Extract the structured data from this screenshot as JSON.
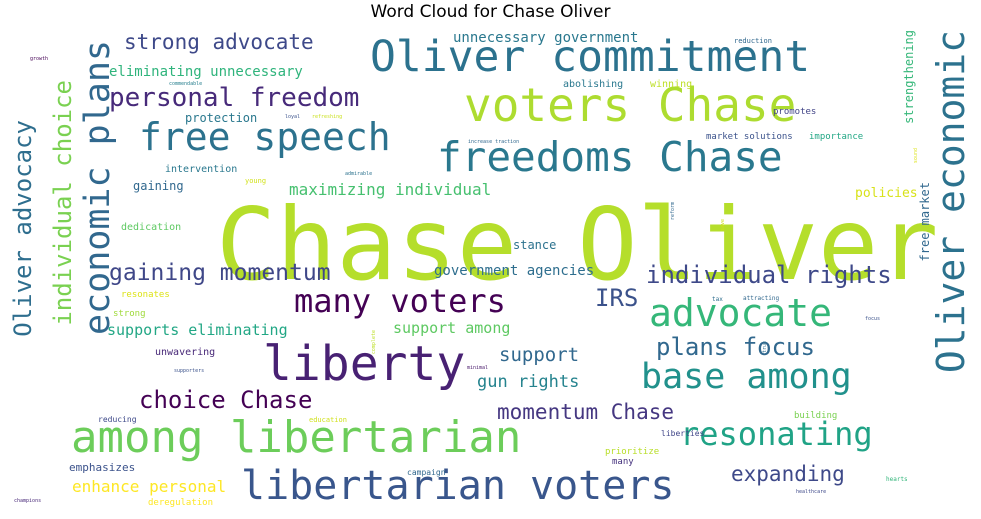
{
  "chart_data": {
    "type": "wordcloud",
    "title": "Word Cloud for Chase Oliver",
    "words": [
      {
        "text": "Chase Oliver",
        "weight": 100,
        "color": "#b5de2b",
        "orientation": "horizontal"
      },
      {
        "text": "voters Chase",
        "weight": 45,
        "color": "#addc30",
        "orientation": "horizontal"
      },
      {
        "text": "Oliver commitment",
        "weight": 44,
        "color": "#2c728e",
        "orientation": "horizontal"
      },
      {
        "text": "liberty",
        "weight": 46,
        "color": "#482173",
        "orientation": "horizontal"
      },
      {
        "text": "among libertarian",
        "weight": 44,
        "color": "#6ccd5a",
        "orientation": "horizontal"
      },
      {
        "text": "libertarian voters",
        "weight": 40,
        "color": "#39568c",
        "orientation": "horizontal"
      },
      {
        "text": "freedoms Chase",
        "weight": 40,
        "color": "#2a788e",
        "orientation": "horizontal"
      },
      {
        "text": "free speech",
        "weight": 37,
        "color": "#2c728e",
        "orientation": "horizontal"
      },
      {
        "text": "advocate",
        "weight": 37,
        "color": "#35b779",
        "orientation": "horizontal"
      },
      {
        "text": "base among",
        "weight": 35,
        "color": "#21918c",
        "orientation": "horizontal"
      },
      {
        "text": "many voters",
        "weight": 32,
        "color": "#440154",
        "orientation": "horizontal"
      },
      {
        "text": "resonating",
        "weight": 32,
        "color": "#20a386",
        "orientation": "horizontal"
      },
      {
        "text": "Oliver economic",
        "weight": 37,
        "color": "#2c728e",
        "orientation": "vertical"
      },
      {
        "text": "economic plans",
        "weight": 35,
        "color": "#31688e",
        "orientation": "vertical"
      },
      {
        "text": "personal freedom",
        "weight": 26,
        "color": "#472a7a",
        "orientation": "horizontal"
      },
      {
        "text": "choice Chase",
        "weight": 24,
        "color": "#440154",
        "orientation": "horizontal"
      },
      {
        "text": "Oliver advocacy",
        "weight": 24,
        "color": "#2e6e8e",
        "orientation": "vertical"
      },
      {
        "text": "individual choice",
        "weight": 24,
        "color": "#7ad151",
        "orientation": "vertical"
      },
      {
        "text": "individual rights",
        "weight": 24,
        "color": "#3e4989",
        "orientation": "horizontal"
      },
      {
        "text": "gaining momentum",
        "weight": 23,
        "color": "#3f4788",
        "orientation": "horizontal"
      },
      {
        "text": "plans focus",
        "weight": 24,
        "color": "#31688e",
        "orientation": "horizontal"
      },
      {
        "text": "expanding",
        "weight": 21,
        "color": "#3e4989",
        "orientation": "horizontal"
      },
      {
        "text": "momentum Chase",
        "weight": 20,
        "color": "#453781",
        "orientation": "horizontal"
      },
      {
        "text": "IRS",
        "weight": 24,
        "color": "#3b528b",
        "orientation": "horizontal"
      },
      {
        "text": "strong advocate",
        "weight": 20,
        "color": "#3e4989",
        "orientation": "horizontal"
      },
      {
        "text": "support",
        "weight": 19,
        "color": "#31688e",
        "orientation": "horizontal"
      },
      {
        "text": "gun rights",
        "weight": 17,
        "color": "#25838e",
        "orientation": "horizontal"
      },
      {
        "text": "enhance personal",
        "weight": 16,
        "color": "#fde725",
        "orientation": "horizontal"
      },
      {
        "text": "maximizing individual",
        "weight": 16,
        "color": "#46c06f",
        "orientation": "horizontal"
      },
      {
        "text": "supports eliminating",
        "weight": 15,
        "color": "#22a785",
        "orientation": "horizontal"
      },
      {
        "text": "support among",
        "weight": 15,
        "color": "#5ec962",
        "orientation": "horizontal"
      },
      {
        "text": "government agencies",
        "weight": 14,
        "color": "#2e6e8e",
        "orientation": "horizontal"
      },
      {
        "text": "eliminating unnecessary",
        "weight": 14,
        "color": "#2fb47c",
        "orientation": "horizontal"
      },
      {
        "text": "unnecessary government",
        "weight": 14,
        "color": "#2a788e",
        "orientation": "horizontal"
      },
      {
        "text": "strengthening",
        "weight": 12,
        "color": "#35b779",
        "orientation": "vertical"
      },
      {
        "text": "free market",
        "weight": 12,
        "color": "#31688e",
        "orientation": "vertical"
      },
      {
        "text": "policies",
        "weight": 12,
        "color": "#d8e219",
        "orientation": "horizontal"
      },
      {
        "text": "gaining",
        "weight": 12,
        "color": "#31688e",
        "orientation": "horizontal"
      },
      {
        "text": "stance",
        "weight": 12,
        "color": "#2c728e",
        "orientation": "horizontal"
      },
      {
        "text": "protection",
        "weight": 12,
        "color": "#2a788e",
        "orientation": "horizontal"
      },
      {
        "text": "emphasizes",
        "weight": 11,
        "color": "#3b528b",
        "orientation": "horizontal"
      },
      {
        "text": "unwavering",
        "weight": 10,
        "color": "#482878",
        "orientation": "horizontal"
      },
      {
        "text": "abolishing",
        "weight": 10,
        "color": "#2a788e",
        "orientation": "horizontal"
      },
      {
        "text": "winning",
        "weight": 10,
        "color": "#bddf26",
        "orientation": "horizontal"
      },
      {
        "text": "promotes",
        "weight": 9,
        "color": "#414487",
        "orientation": "horizontal"
      },
      {
        "text": "market solutions",
        "weight": 9,
        "color": "#3b528b",
        "orientation": "horizontal"
      },
      {
        "text": "importance",
        "weight": 9,
        "color": "#22a785",
        "orientation": "horizontal"
      },
      {
        "text": "intervention",
        "weight": 10,
        "color": "#2a788e",
        "orientation": "horizontal"
      },
      {
        "text": "dedication",
        "weight": 10,
        "color": "#5ec962",
        "orientation": "horizontal"
      },
      {
        "text": "resonates",
        "weight": 9,
        "color": "#dde318",
        "orientation": "horizontal"
      },
      {
        "text": "strong",
        "weight": 9,
        "color": "#9fda3a",
        "orientation": "horizontal"
      },
      {
        "text": "building",
        "weight": 9,
        "color": "#7ad151",
        "orientation": "horizontal"
      },
      {
        "text": "prioritize",
        "weight": 9,
        "color": "#b8de29",
        "orientation": "horizontal"
      },
      {
        "text": "liberties",
        "weight": 8,
        "color": "#404688",
        "orientation": "horizontal"
      },
      {
        "text": "many",
        "weight": 9,
        "color": "#46337e",
        "orientation": "horizontal"
      },
      {
        "text": "deregulation",
        "weight": 9,
        "color": "#fde725",
        "orientation": "horizontal"
      },
      {
        "text": "reducing",
        "weight": 8,
        "color": "#3e4989",
        "orientation": "horizontal"
      },
      {
        "text": "campaign",
        "weight": 8,
        "color": "#31688e",
        "orientation": "horizontal"
      },
      {
        "text": "reduction",
        "weight": 7,
        "color": "#31688e",
        "orientation": "horizontal"
      },
      {
        "text": "young",
        "weight": 7,
        "color": "#d2e21b",
        "orientation": "horizontal"
      },
      {
        "text": "education",
        "weight": 7,
        "color": "#d0e11c",
        "orientation": "horizontal"
      },
      {
        "text": "attracting",
        "weight": 6,
        "color": "#31688e",
        "orientation": "horizontal"
      },
      {
        "text": "tax",
        "weight": 6,
        "color": "#2e6e8e",
        "orientation": "horizontal"
      },
      {
        "text": "hearts",
        "weight": 6,
        "color": "#32b67a",
        "orientation": "horizontal"
      },
      {
        "text": "healthcare",
        "weight": 5,
        "color": "#3e4989",
        "orientation": "horizontal"
      },
      {
        "text": "supporters",
        "weight": 5,
        "color": "#3b528b",
        "orientation": "horizontal"
      },
      {
        "text": "commendable",
        "weight": 5,
        "color": "#277f8e",
        "orientation": "horizontal"
      },
      {
        "text": "loyal",
        "weight": 5,
        "color": "#3b528b",
        "orientation": "horizontal"
      },
      {
        "text": "refreshing",
        "weight": 5,
        "color": "#cae11f",
        "orientation": "horizontal"
      },
      {
        "text": "admirable",
        "weight": 5,
        "color": "#2c728e",
        "orientation": "horizontal"
      },
      {
        "text": "increase traction",
        "weight": 5,
        "color": "#31688e",
        "orientation": "horizontal"
      },
      {
        "text": "growth",
        "weight": 5,
        "color": "#440154",
        "orientation": "horizontal"
      },
      {
        "text": "minimal",
        "weight": 5,
        "color": "#48186a",
        "orientation": "horizontal"
      },
      {
        "text": "champions",
        "weight": 5,
        "color": "#482878",
        "orientation": "horizontal"
      },
      {
        "text": "focus",
        "weight": 5,
        "color": "#3b528b",
        "orientation": "horizontal"
      },
      {
        "text": "reform",
        "weight": 5,
        "color": "#31688e",
        "orientation": "vertical"
      },
      {
        "text": "complete",
        "weight": 5,
        "color": "#bddf26",
        "orientation": "vertical"
      },
      {
        "text": "true",
        "weight": 5,
        "color": "#2e6e8e",
        "orientation": "vertical"
      },
      {
        "text": "save",
        "weight": 5,
        "color": "#d0e11c",
        "orientation": "vertical"
      },
      {
        "text": "sound",
        "weight": 5,
        "color": "#dde318",
        "orientation": "vertical"
      }
    ]
  }
}
